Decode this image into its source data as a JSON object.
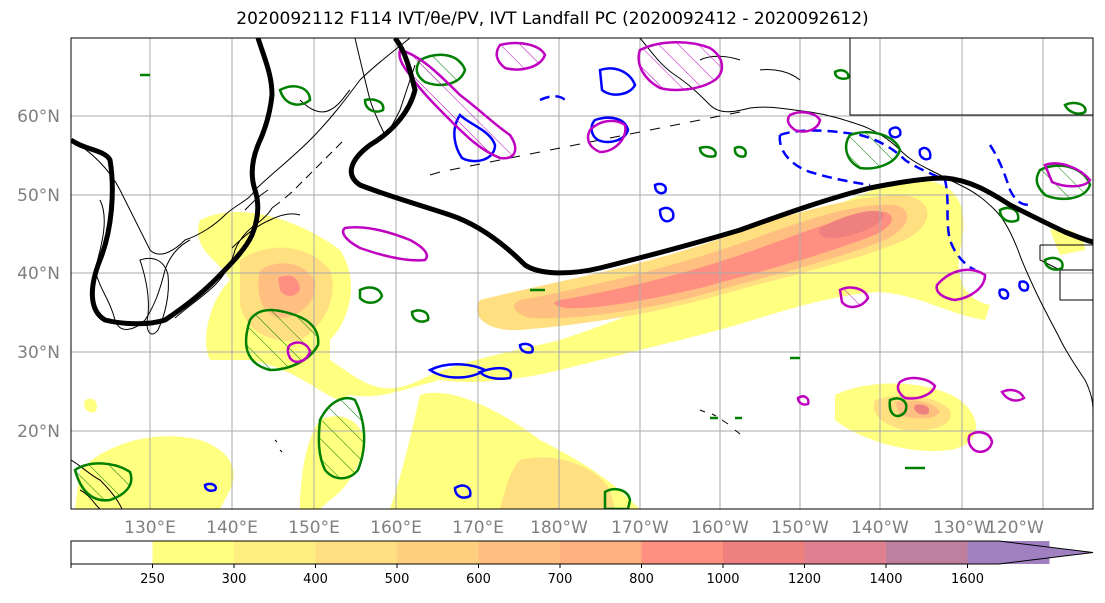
{
  "title": "2020092112 F114 IVT/θe/PV, IVT Landfall PC (2020092412 - 2020092612)",
  "lat_labels": [
    "60°N",
    "50°N",
    "40°N",
    "30°N",
    "20°N"
  ],
  "lon_labels": [
    "130°E",
    "140°E",
    "150°E",
    "160°E",
    "170°E",
    "180°W",
    "170°W",
    "160°W",
    "150°W",
    "140°W",
    "130°W",
    "120°W"
  ],
  "colorbar": {
    "ticks": [
      "250",
      "300",
      "400",
      "500",
      "600",
      "700",
      "800",
      "1000",
      "1200",
      "1400",
      "1600"
    ],
    "colors": [
      "#ffffff",
      "#ffff80",
      "#ffef80",
      "#ffdf80",
      "#ffcf80",
      "#ffbf80",
      "#ffaf80",
      "#ff8f80",
      "#ef8080",
      "#df8090",
      "#bf80a0",
      "#a080c0"
    ]
  },
  "colors": {
    "pc_contour": "#000000",
    "theta_e": "#0000ff",
    "pv_green": "#008000",
    "pv_magenta": "#c000c0",
    "grid": "#aaaaaa",
    "coast": "#000000"
  }
}
